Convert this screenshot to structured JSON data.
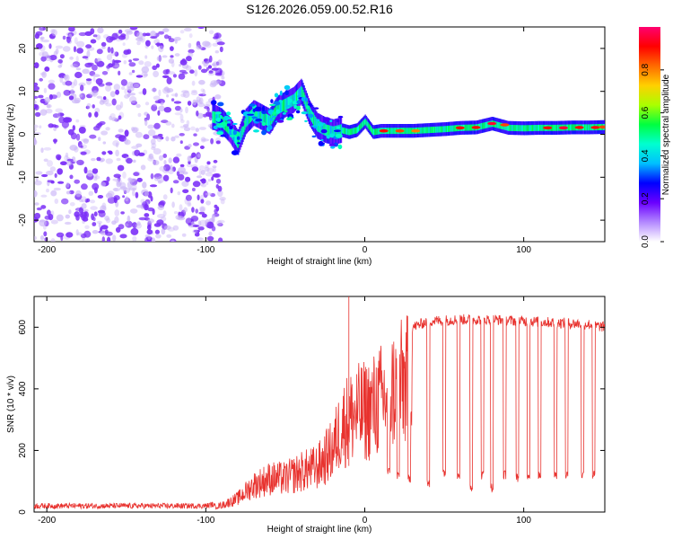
{
  "figure_title": "S126.2026.059.00.52.R16",
  "colors": {
    "snr_line": "#e8322e",
    "scatter": "#7b2ff7",
    "scatter_light": "#c9b3f7",
    "axis": "#000000"
  },
  "colorbar": {
    "label": "Normalized spectral amplitude",
    "range": [
      0,
      1
    ],
    "ticks": [
      {
        "value": 0.0,
        "label": "0.0"
      },
      {
        "value": 0.2,
        "label": "0.2"
      },
      {
        "value": 0.4,
        "label": "0.4"
      },
      {
        "value": 0.6,
        "label": "0.6"
      },
      {
        "value": 0.8,
        "label": "0.8"
      }
    ],
    "stops": [
      "#ffffff",
      "#b388ff",
      "#6a00ff",
      "#0000ff",
      "#00bfff",
      "#00ffd0",
      "#00ff40",
      "#aaff00",
      "#ffd000",
      "#ff6a00",
      "#ff0000",
      "#ff0070"
    ]
  },
  "chart_data": [
    {
      "type": "heatmap",
      "title": "",
      "xlabel": "Height of straight line (km)",
      "ylabel": "Frequency (Hz)",
      "xlim": [
        -208,
        151
      ],
      "ylim": [
        -25,
        25
      ],
      "x_ticks": [
        {
          "value": -200,
          "label": "-200"
        },
        {
          "value": -100,
          "label": "-100"
        },
        {
          "value": 0,
          "label": "0"
        },
        {
          "value": 100,
          "label": "100"
        }
      ],
      "y_ticks": [
        {
          "value": -20,
          "label": "-20"
        },
        {
          "value": -10,
          "label": "-10"
        },
        {
          "value": 0,
          "label": "0"
        },
        {
          "value": 10,
          "label": "10"
        },
        {
          "value": 20,
          "label": "20"
        }
      ],
      "noise_region_x": [
        -208,
        -95
      ],
      "ridge": [
        {
          "x": -95,
          "y": 4
        },
        {
          "x": -90,
          "y": 3
        },
        {
          "x": -85,
          "y": 1
        },
        {
          "x": -80,
          "y": -2
        },
        {
          "x": -75,
          "y": 3
        },
        {
          "x": -70,
          "y": 5
        },
        {
          "x": -65,
          "y": 4
        },
        {
          "x": -60,
          "y": 3
        },
        {
          "x": -55,
          "y": 6
        },
        {
          "x": -50,
          "y": 7
        },
        {
          "x": -45,
          "y": 8
        },
        {
          "x": -40,
          "y": 10
        },
        {
          "x": -35,
          "y": 5
        },
        {
          "x": -30,
          "y": 2
        },
        {
          "x": -25,
          "y": 1
        },
        {
          "x": -20,
          "y": 0.5
        },
        {
          "x": -15,
          "y": 1
        },
        {
          "x": -10,
          "y": 0.5
        },
        {
          "x": -5,
          "y": 1
        },
        {
          "x": 0,
          "y": 3
        },
        {
          "x": 5,
          "y": 0.5
        },
        {
          "x": 10,
          "y": 0.8
        },
        {
          "x": 20,
          "y": 0.8
        },
        {
          "x": 30,
          "y": 0.8
        },
        {
          "x": 40,
          "y": 1
        },
        {
          "x": 50,
          "y": 1.2
        },
        {
          "x": 60,
          "y": 1.5
        },
        {
          "x": 70,
          "y": 1.6
        },
        {
          "x": 80,
          "y": 2.5
        },
        {
          "x": 90,
          "y": 1.5
        },
        {
          "x": 100,
          "y": 1.4
        },
        {
          "x": 110,
          "y": 1.5
        },
        {
          "x": 120,
          "y": 1.5
        },
        {
          "x": 130,
          "y": 1.6
        },
        {
          "x": 140,
          "y": 1.6
        },
        {
          "x": 151,
          "y": 1.7
        }
      ],
      "peaks": [
        {
          "x": 12,
          "y": 0.8,
          "amp": 0.9
        },
        {
          "x": 22,
          "y": 0.8,
          "amp": 0.85
        },
        {
          "x": 32,
          "y": 0.8,
          "amp": 0.8
        },
        {
          "x": 60,
          "y": 1.5,
          "amp": 0.9
        },
        {
          "x": 70,
          "y": 1.6,
          "amp": 0.9
        },
        {
          "x": 80,
          "y": 2.5,
          "amp": 0.95
        },
        {
          "x": 88,
          "y": 2.2,
          "amp": 0.85
        },
        {
          "x": 115,
          "y": 1.5,
          "amp": 0.9
        },
        {
          "x": 125,
          "y": 1.5,
          "amp": 0.95
        },
        {
          "x": 135,
          "y": 1.6,
          "amp": 0.9
        },
        {
          "x": 145,
          "y": 1.6,
          "amp": 0.9
        },
        {
          "x": 150,
          "y": 1.7,
          "amp": 0.85
        }
      ]
    },
    {
      "type": "line",
      "title": "",
      "xlabel": "Height of straight line (km)",
      "ylabel": "SNR (10 * v/v)",
      "xlim": [
        -208,
        151
      ],
      "ylim": [
        0,
        700
      ],
      "x_ticks": [
        {
          "value": -200,
          "label": "-200"
        },
        {
          "value": -100,
          "label": "-100"
        },
        {
          "value": 0,
          "label": "0"
        },
        {
          "value": 100,
          "label": "100"
        }
      ],
      "y_ticks": [
        {
          "value": 0,
          "label": "0"
        },
        {
          "value": 200,
          "label": "200"
        },
        {
          "value": 400,
          "label": "400"
        },
        {
          "value": 600,
          "label": "600"
        }
      ],
      "envelope": [
        {
          "x": -208,
          "y": 20
        },
        {
          "x": -100,
          "y": 20
        },
        {
          "x": -90,
          "y": 30
        },
        {
          "x": -80,
          "y": 60
        },
        {
          "x": -70,
          "y": 120
        },
        {
          "x": -60,
          "y": 150
        },
        {
          "x": -50,
          "y": 150
        },
        {
          "x": -40,
          "y": 180
        },
        {
          "x": -30,
          "y": 200
        },
        {
          "x": -20,
          "y": 280
        },
        {
          "x": -15,
          "y": 380
        },
        {
          "x": -10,
          "y": 420
        },
        {
          "x": -5,
          "y": 440
        },
        {
          "x": 0,
          "y": 450
        },
        {
          "x": 5,
          "y": 470
        },
        {
          "x": 10,
          "y": 500
        },
        {
          "x": 15,
          "y": 530
        },
        {
          "x": 20,
          "y": 560
        },
        {
          "x": 25,
          "y": 580
        },
        {
          "x": 30,
          "y": 600
        },
        {
          "x": 40,
          "y": 620
        },
        {
          "x": 60,
          "y": 625
        },
        {
          "x": 80,
          "y": 625
        },
        {
          "x": 100,
          "y": 620
        },
        {
          "x": 120,
          "y": 615
        },
        {
          "x": 140,
          "y": 610
        },
        {
          "x": 151,
          "y": 600
        }
      ],
      "dips": [
        {
          "x": 15,
          "y": 130
        },
        {
          "x": 21,
          "y": 120
        },
        {
          "x": 28,
          "y": 110
        },
        {
          "x": 40,
          "y": 90
        },
        {
          "x": 50,
          "y": 130
        },
        {
          "x": 59,
          "y": 120
        },
        {
          "x": 67,
          "y": 80
        },
        {
          "x": 74,
          "y": 120
        },
        {
          "x": 80,
          "y": 80
        },
        {
          "x": 88,
          "y": 120
        },
        {
          "x": 96,
          "y": 110
        },
        {
          "x": 103,
          "y": 120
        },
        {
          "x": 110,
          "y": 120
        },
        {
          "x": 120,
          "y": 120
        },
        {
          "x": 127,
          "y": 120
        },
        {
          "x": 137,
          "y": 120
        },
        {
          "x": 144,
          "y": 120
        }
      ],
      "spike": {
        "x": -10,
        "y": 700
      }
    }
  ]
}
